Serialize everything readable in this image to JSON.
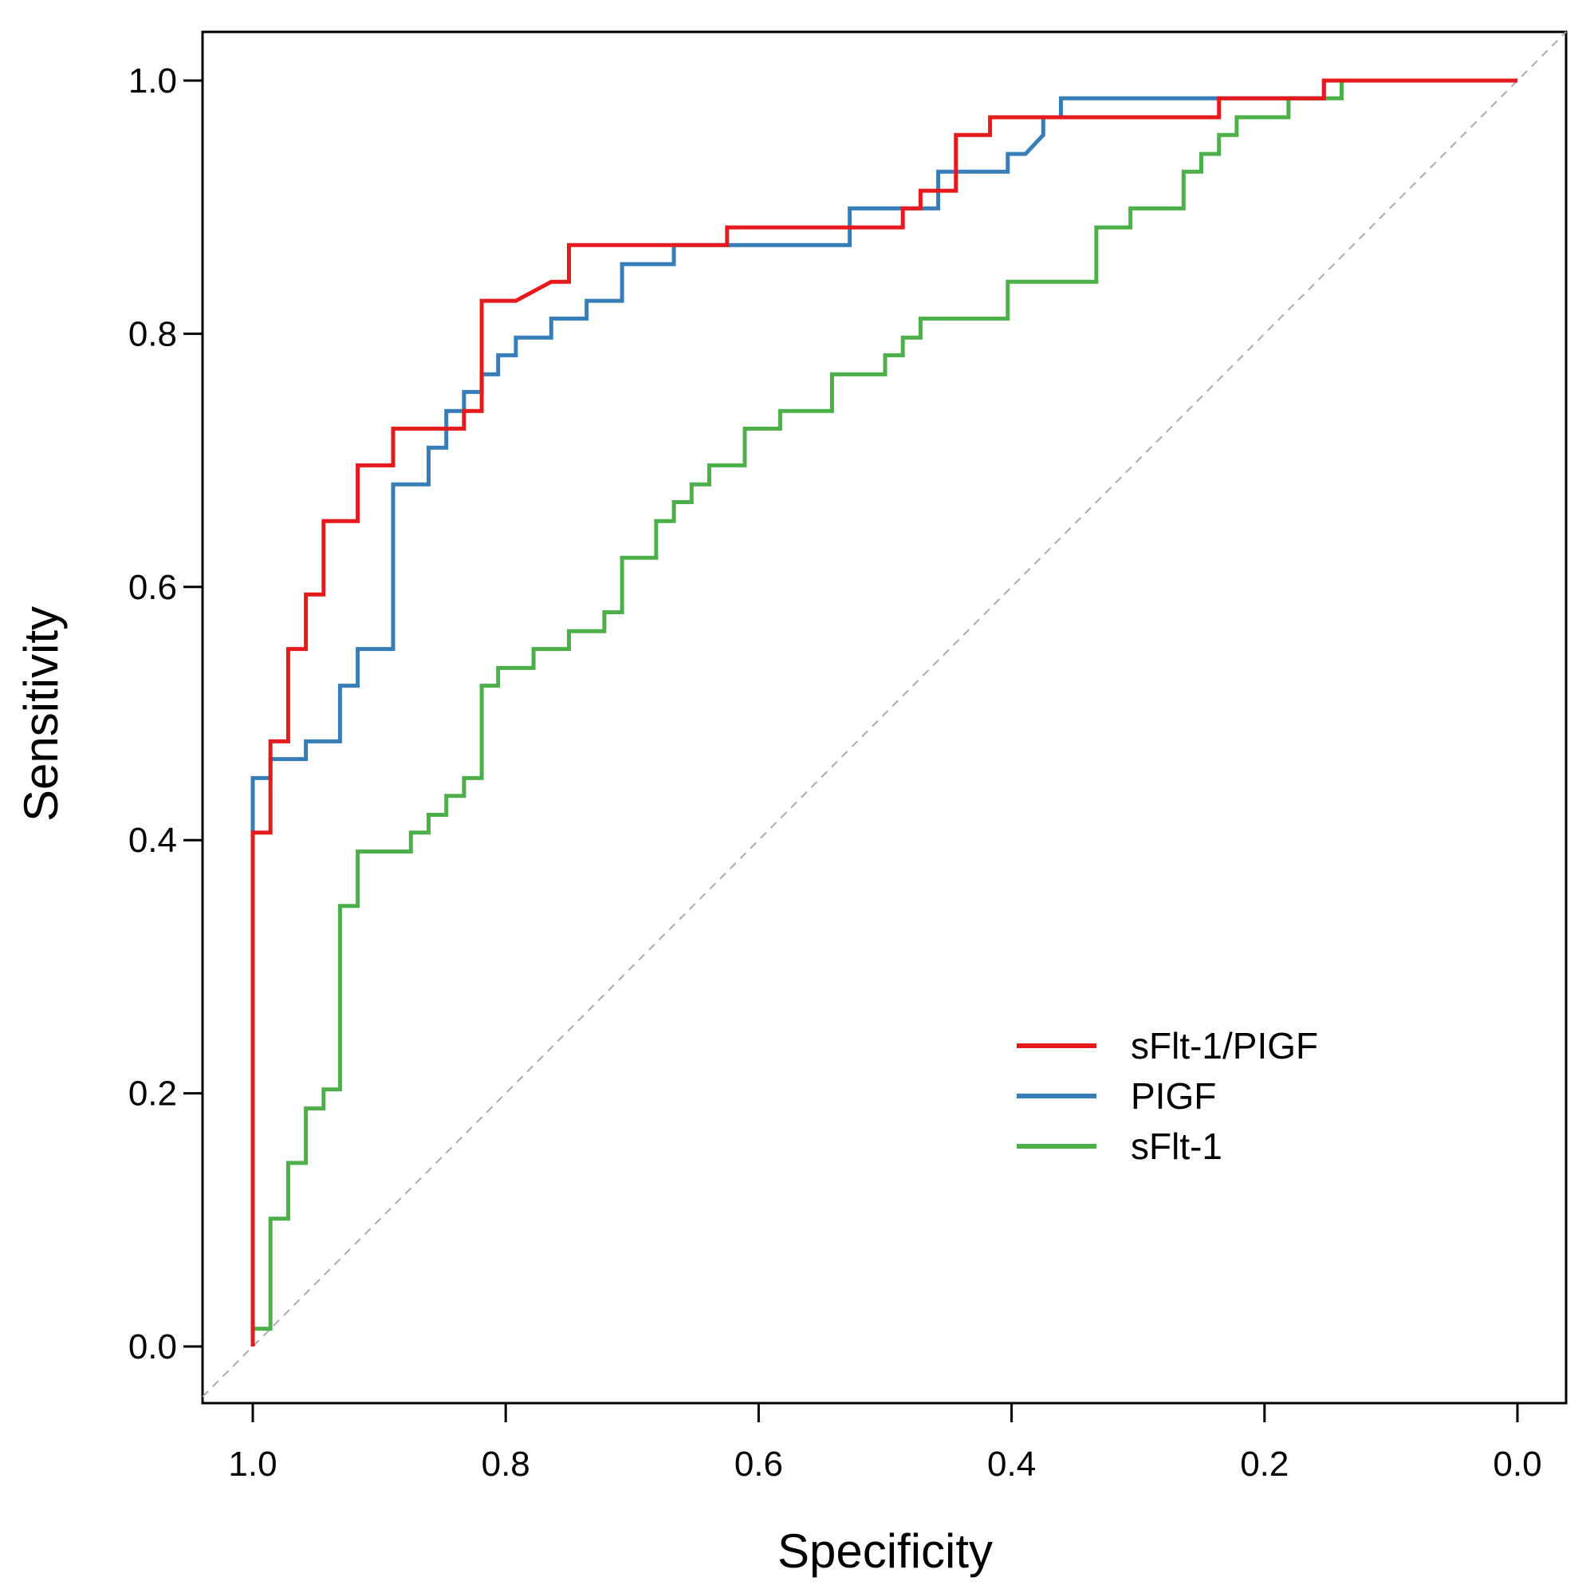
{
  "chart_data": {
    "type": "line",
    "title": "",
    "xlabel": "Specificity",
    "ylabel": "Sensitivity",
    "xlim": [
      1.0,
      0.0
    ],
    "ylim": [
      0.0,
      1.0
    ],
    "x_ticks": [
      "1.0",
      "0.8",
      "0.6",
      "0.4",
      "0.2",
      "0.0"
    ],
    "y_ticks": [
      "0.0",
      "0.2",
      "0.4",
      "0.6",
      "0.8",
      "1.0"
    ],
    "grid": false,
    "reference_line": {
      "from": [
        1.0,
        0.0
      ],
      "to": [
        0.0,
        1.0
      ],
      "style": "dashed",
      "color": "#aaaaaa"
    },
    "legend_position": "bottom-right",
    "series": [
      {
        "name": "sFlt-1/PIGF",
        "color": "#e41a1c",
        "points": [
          [
            1.0,
            0.0
          ],
          [
            1.0,
            0.406
          ],
          [
            0.986,
            0.406
          ],
          [
            0.986,
            0.478
          ],
          [
            0.972,
            0.478
          ],
          [
            0.972,
            0.551
          ],
          [
            0.958,
            0.551
          ],
          [
            0.958,
            0.594
          ],
          [
            0.944,
            0.594
          ],
          [
            0.944,
            0.652
          ],
          [
            0.917,
            0.652
          ],
          [
            0.917,
            0.696
          ],
          [
            0.889,
            0.696
          ],
          [
            0.889,
            0.725
          ],
          [
            0.833,
            0.725
          ],
          [
            0.833,
            0.739
          ],
          [
            0.819,
            0.739
          ],
          [
            0.819,
            0.826
          ],
          [
            0.792,
            0.826
          ],
          [
            0.764,
            0.841
          ],
          [
            0.75,
            0.841
          ],
          [
            0.75,
            0.87
          ],
          [
            0.625,
            0.87
          ],
          [
            0.625,
            0.884
          ],
          [
            0.486,
            0.884
          ],
          [
            0.486,
            0.899
          ],
          [
            0.472,
            0.899
          ],
          [
            0.472,
            0.913
          ],
          [
            0.444,
            0.913
          ],
          [
            0.444,
            0.957
          ],
          [
            0.417,
            0.957
          ],
          [
            0.417,
            0.971
          ],
          [
            0.236,
            0.971
          ],
          [
            0.236,
            0.986
          ],
          [
            0.153,
            0.986
          ],
          [
            0.153,
            1.0
          ],
          [
            0.0,
            1.0
          ]
        ]
      },
      {
        "name": "PIGF",
        "color": "#377eb8",
        "points": [
          [
            1.0,
            0.0
          ],
          [
            1.0,
            0.449
          ],
          [
            0.986,
            0.449
          ],
          [
            0.986,
            0.464
          ],
          [
            0.958,
            0.464
          ],
          [
            0.958,
            0.478
          ],
          [
            0.931,
            0.478
          ],
          [
            0.931,
            0.522
          ],
          [
            0.917,
            0.522
          ],
          [
            0.917,
            0.551
          ],
          [
            0.889,
            0.551
          ],
          [
            0.889,
            0.681
          ],
          [
            0.861,
            0.681
          ],
          [
            0.861,
            0.71
          ],
          [
            0.847,
            0.71
          ],
          [
            0.847,
            0.739
          ],
          [
            0.833,
            0.739
          ],
          [
            0.833,
            0.754
          ],
          [
            0.819,
            0.754
          ],
          [
            0.819,
            0.768
          ],
          [
            0.806,
            0.768
          ],
          [
            0.806,
            0.783
          ],
          [
            0.792,
            0.783
          ],
          [
            0.792,
            0.797
          ],
          [
            0.764,
            0.797
          ],
          [
            0.764,
            0.812
          ],
          [
            0.736,
            0.812
          ],
          [
            0.736,
            0.826
          ],
          [
            0.708,
            0.826
          ],
          [
            0.708,
            0.855
          ],
          [
            0.667,
            0.855
          ],
          [
            0.667,
            0.87
          ],
          [
            0.528,
            0.87
          ],
          [
            0.528,
            0.899
          ],
          [
            0.458,
            0.899
          ],
          [
            0.458,
            0.928
          ],
          [
            0.403,
            0.928
          ],
          [
            0.403,
            0.942
          ],
          [
            0.389,
            0.942
          ],
          [
            0.375,
            0.957
          ],
          [
            0.375,
            0.971
          ],
          [
            0.361,
            0.971
          ],
          [
            0.361,
            0.986
          ],
          [
            0.153,
            0.986
          ],
          [
            0.153,
            1.0
          ],
          [
            0.0,
            1.0
          ]
        ]
      },
      {
        "name": "sFlt-1",
        "color": "#4daf4a",
        "points": [
          [
            1.0,
            0.0
          ],
          [
            1.0,
            0.014
          ],
          [
            0.986,
            0.014
          ],
          [
            0.986,
            0.101
          ],
          [
            0.972,
            0.101
          ],
          [
            0.972,
            0.145
          ],
          [
            0.958,
            0.145
          ],
          [
            0.958,
            0.188
          ],
          [
            0.944,
            0.188
          ],
          [
            0.944,
            0.203
          ],
          [
            0.931,
            0.203
          ],
          [
            0.931,
            0.348
          ],
          [
            0.917,
            0.348
          ],
          [
            0.917,
            0.391
          ],
          [
            0.875,
            0.391
          ],
          [
            0.875,
            0.406
          ],
          [
            0.861,
            0.406
          ],
          [
            0.861,
            0.42
          ],
          [
            0.847,
            0.42
          ],
          [
            0.847,
            0.435
          ],
          [
            0.833,
            0.435
          ],
          [
            0.833,
            0.449
          ],
          [
            0.819,
            0.449
          ],
          [
            0.819,
            0.522
          ],
          [
            0.806,
            0.522
          ],
          [
            0.806,
            0.536
          ],
          [
            0.778,
            0.536
          ],
          [
            0.778,
            0.551
          ],
          [
            0.75,
            0.551
          ],
          [
            0.75,
            0.565
          ],
          [
            0.722,
            0.565
          ],
          [
            0.722,
            0.58
          ],
          [
            0.708,
            0.58
          ],
          [
            0.708,
            0.623
          ],
          [
            0.681,
            0.623
          ],
          [
            0.681,
            0.652
          ],
          [
            0.667,
            0.652
          ],
          [
            0.667,
            0.667
          ],
          [
            0.653,
            0.667
          ],
          [
            0.653,
            0.681
          ],
          [
            0.639,
            0.681
          ],
          [
            0.639,
            0.696
          ],
          [
            0.611,
            0.696
          ],
          [
            0.611,
            0.725
          ],
          [
            0.583,
            0.725
          ],
          [
            0.583,
            0.739
          ],
          [
            0.542,
            0.739
          ],
          [
            0.542,
            0.768
          ],
          [
            0.5,
            0.768
          ],
          [
            0.5,
            0.783
          ],
          [
            0.486,
            0.783
          ],
          [
            0.486,
            0.797
          ],
          [
            0.472,
            0.797
          ],
          [
            0.472,
            0.812
          ],
          [
            0.403,
            0.812
          ],
          [
            0.403,
            0.841
          ],
          [
            0.333,
            0.841
          ],
          [
            0.333,
            0.884
          ],
          [
            0.306,
            0.884
          ],
          [
            0.306,
            0.899
          ],
          [
            0.264,
            0.899
          ],
          [
            0.264,
            0.928
          ],
          [
            0.25,
            0.928
          ],
          [
            0.25,
            0.942
          ],
          [
            0.236,
            0.942
          ],
          [
            0.236,
            0.957
          ],
          [
            0.222,
            0.957
          ],
          [
            0.222,
            0.971
          ],
          [
            0.181,
            0.971
          ],
          [
            0.181,
            0.986
          ],
          [
            0.139,
            0.986
          ],
          [
            0.139,
            1.0
          ],
          [
            0.0,
            1.0
          ]
        ]
      }
    ]
  }
}
